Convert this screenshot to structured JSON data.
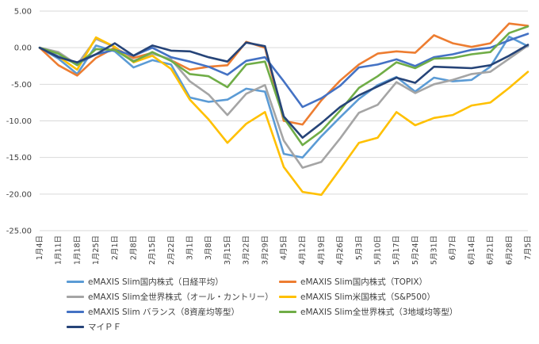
{
  "chart_data": {
    "type": "line",
    "title": "",
    "xlabel": "",
    "ylabel": "",
    "ylim": [
      -25,
      5
    ],
    "yticks": [
      "5.00",
      "0.00",
      "-5.00",
      "-10.00",
      "-15.00",
      "-20.00",
      "-25.00"
    ],
    "grid": true,
    "legend_position": "bottom",
    "x": [
      "1月4日",
      "1月11日",
      "1月18日",
      "1月25日",
      "2月1日",
      "2月8日",
      "2月15日",
      "2月22日",
      "3月1日",
      "3月8日",
      "3月15日",
      "3月22日",
      "3月29日",
      "4月5日",
      "4月12日",
      "4月19日",
      "4月26日",
      "5月3日",
      "5月10日",
      "5月17日",
      "5月24日",
      "5月31日",
      "6月7日",
      "6月14日",
      "6月21日",
      "6月28日",
      "7月5日"
    ],
    "series": [
      {
        "name": "eMAXIS Slim国内株式（日経平均）",
        "color": "#5B9BD5",
        "values": [
          0,
          -1.5,
          -3.6,
          0.3,
          -0.5,
          -2.7,
          -1.7,
          -2.3,
          -6.8,
          -7.4,
          -7.1,
          -5.6,
          -6.0,
          -14.5,
          -15.0,
          -12.1,
          -9.5,
          -7.0,
          -5.1,
          -4.0,
          -6.0,
          -4.1,
          -4.6,
          -4.4,
          -2.6,
          1.5,
          0.2
        ]
      },
      {
        "name": "eMAXIS Slim国内株式（TOPIX）",
        "color": "#ED7D31",
        "values": [
          0,
          -2.4,
          -3.8,
          -1.4,
          0.0,
          -1.4,
          -0.7,
          -1.7,
          -3.0,
          -2.6,
          -2.4,
          0.8,
          0.0,
          -10.0,
          -10.5,
          -7.2,
          -4.5,
          -2.3,
          -0.8,
          -0.5,
          -0.7,
          1.7,
          0.6,
          0.1,
          0.6,
          3.3,
          3.0
        ]
      },
      {
        "name": "eMAXIS Slim全世界株式（オール・カントリー）",
        "color": "#A5A5A5",
        "values": [
          0,
          -0.6,
          -2.3,
          1.2,
          0.1,
          -1.8,
          -0.8,
          -1.6,
          -4.6,
          -6.4,
          -9.2,
          -6.3,
          -5.1,
          -12.7,
          -16.4,
          -15.6,
          -12.4,
          -8.9,
          -7.8,
          -4.7,
          -6.2,
          -5.0,
          -4.4,
          -3.6,
          -3.3,
          -1.5,
          0.3
        ]
      },
      {
        "name": "eMAXIS Slim米国株式（S&P500）",
        "color": "#FFC000",
        "values": [
          0,
          -1.2,
          -3.0,
          1.4,
          0.1,
          -2.0,
          -1.1,
          -2.9,
          -7.1,
          -9.8,
          -13.0,
          -10.4,
          -8.8,
          -16.3,
          -19.7,
          -20.1,
          -16.6,
          -13.0,
          -12.3,
          -8.8,
          -10.6,
          -9.6,
          -9.2,
          -7.9,
          -7.5,
          -5.5,
          -3.3
        ]
      },
      {
        "name": "eMAXIS Slim バランス（8資産均等型）",
        "color": "#4472C4",
        "values": [
          0,
          -1.2,
          -2.2,
          -0.9,
          -0.3,
          -1.1,
          0.0,
          -1.3,
          -1.9,
          -2.6,
          -3.7,
          -1.8,
          -1.3,
          -4.6,
          -8.1,
          -6.9,
          -5.2,
          -2.7,
          -2.3,
          -1.6,
          -2.5,
          -1.3,
          -0.9,
          -0.3,
          0.0,
          1.0,
          1.9
        ]
      },
      {
        "name": "eMAXIS Slim全世界株式（3地域均等型）",
        "color": "#70AD47",
        "values": [
          0,
          -0.8,
          -2.4,
          -0.2,
          -0.3,
          -1.9,
          -0.6,
          -1.8,
          -3.6,
          -3.9,
          -5.4,
          -2.3,
          -1.9,
          -9.6,
          -13.3,
          -11.4,
          -8.6,
          -5.5,
          -3.9,
          -2.0,
          -2.8,
          -1.5,
          -1.4,
          -0.9,
          -0.6,
          2.0,
          2.9
        ]
      },
      {
        "name": "マイＰＦ",
        "color": "#264478",
        "values": [
          0,
          -1.3,
          -2.0,
          -0.9,
          0.6,
          -1.1,
          0.3,
          -0.4,
          -0.5,
          -1.3,
          -1.9,
          0.7,
          0.2,
          -9.4,
          -12.3,
          -10.3,
          -8.1,
          -6.5,
          -5.3,
          -4.1,
          -4.8,
          -2.6,
          -2.7,
          -2.8,
          -2.4,
          -1.1,
          0.4
        ]
      }
    ]
  }
}
